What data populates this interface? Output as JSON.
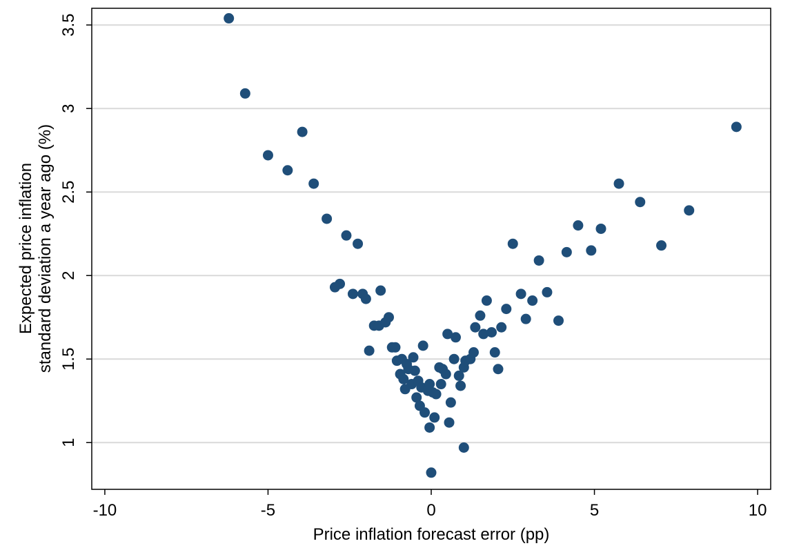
{
  "chart_data": {
    "type": "scatter",
    "title": "",
    "xlabel": "Price inflation forecast error (pp)",
    "ylabel_lines": [
      "Expected price inflation",
      "standard deviation a year ago (%)"
    ],
    "xlim": [
      -10.4,
      10.4
    ],
    "ylim": [
      0.72,
      3.6
    ],
    "x_ticks": [
      -10,
      -5,
      0,
      5,
      10
    ],
    "x_tick_labels": [
      "-10",
      "-5",
      "0",
      "5",
      "10"
    ],
    "y_ticks": [
      1,
      1.5,
      2,
      2.5,
      3,
      3.5
    ],
    "y_tick_labels": [
      "1",
      "1.5",
      "2",
      "2.5",
      "3",
      "3.5"
    ],
    "grid": "horizontal",
    "marker_color": "#1f4e79",
    "points": [
      {
        "x": -6.2,
        "y": 3.54
      },
      {
        "x": -5.7,
        "y": 3.09
      },
      {
        "x": -3.95,
        "y": 2.86
      },
      {
        "x": -5.0,
        "y": 2.72
      },
      {
        "x": -4.4,
        "y": 2.63
      },
      {
        "x": -3.6,
        "y": 2.55
      },
      {
        "x": -3.2,
        "y": 2.34
      },
      {
        "x": -2.6,
        "y": 2.24
      },
      {
        "x": -2.25,
        "y": 2.19
      },
      {
        "x": -2.8,
        "y": 1.95
      },
      {
        "x": -2.95,
        "y": 1.93
      },
      {
        "x": -2.4,
        "y": 1.89
      },
      {
        "x": -2.1,
        "y": 1.89
      },
      {
        "x": -2.0,
        "y": 1.86
      },
      {
        "x": -1.55,
        "y": 1.91
      },
      {
        "x": -1.75,
        "y": 1.7
      },
      {
        "x": -1.6,
        "y": 1.7
      },
      {
        "x": -1.4,
        "y": 1.72
      },
      {
        "x": -1.3,
        "y": 1.75
      },
      {
        "x": -1.9,
        "y": 1.55
      },
      {
        "x": -1.2,
        "y": 1.57
      },
      {
        "x": -1.1,
        "y": 1.57
      },
      {
        "x": -1.05,
        "y": 1.49
      },
      {
        "x": -0.9,
        "y": 1.5
      },
      {
        "x": -0.75,
        "y": 1.47
      },
      {
        "x": -0.55,
        "y": 1.51
      },
      {
        "x": -0.25,
        "y": 1.58
      },
      {
        "x": -0.7,
        "y": 1.44
      },
      {
        "x": -0.5,
        "y": 1.43
      },
      {
        "x": -0.95,
        "y": 1.41
      },
      {
        "x": -0.85,
        "y": 1.38
      },
      {
        "x": -0.6,
        "y": 1.35
      },
      {
        "x": -0.4,
        "y": 1.37
      },
      {
        "x": -0.3,
        "y": 1.33
      },
      {
        "x": -0.8,
        "y": 1.32
      },
      {
        "x": -0.1,
        "y": 1.31
      },
      {
        "x": -0.05,
        "y": 1.35
      },
      {
        "x": 0.05,
        "y": 1.3
      },
      {
        "x": 0.15,
        "y": 1.29
      },
      {
        "x": 0.25,
        "y": 1.45
      },
      {
        "x": 0.35,
        "y": 1.44
      },
      {
        "x": 0.45,
        "y": 1.41
      },
      {
        "x": 0.3,
        "y": 1.35
      },
      {
        "x": -0.45,
        "y": 1.27
      },
      {
        "x": -0.35,
        "y": 1.22
      },
      {
        "x": -0.2,
        "y": 1.18
      },
      {
        "x": 0.1,
        "y": 1.15
      },
      {
        "x": -0.05,
        "y": 1.09
      },
      {
        "x": 0.55,
        "y": 1.12
      },
      {
        "x": 0.6,
        "y": 1.24
      },
      {
        "x": 0.5,
        "y": 1.65
      },
      {
        "x": 0.75,
        "y": 1.63
      },
      {
        "x": 0.7,
        "y": 1.5
      },
      {
        "x": 0.85,
        "y": 1.4
      },
      {
        "x": 0.9,
        "y": 1.34
      },
      {
        "x": 1.0,
        "y": 1.45
      },
      {
        "x": 1.05,
        "y": 1.49
      },
      {
        "x": 1.2,
        "y": 1.5
      },
      {
        "x": 1.3,
        "y": 1.54
      },
      {
        "x": 1.0,
        "y": 0.97
      },
      {
        "x": 0.0,
        "y": 0.82
      },
      {
        "x": 1.35,
        "y": 1.69
      },
      {
        "x": 1.5,
        "y": 1.76
      },
      {
        "x": 1.6,
        "y": 1.65
      },
      {
        "x": 1.7,
        "y": 1.85
      },
      {
        "x": 1.85,
        "y": 1.66
      },
      {
        "x": 1.95,
        "y": 1.54
      },
      {
        "x": 2.05,
        "y": 1.44
      },
      {
        "x": 2.15,
        "y": 1.69
      },
      {
        "x": 2.3,
        "y": 1.8
      },
      {
        "x": 2.5,
        "y": 2.19
      },
      {
        "x": 2.75,
        "y": 1.89
      },
      {
        "x": 2.9,
        "y": 1.74
      },
      {
        "x": 3.1,
        "y": 1.85
      },
      {
        "x": 3.3,
        "y": 2.09
      },
      {
        "x": 3.55,
        "y": 1.9
      },
      {
        "x": 3.9,
        "y": 1.73
      },
      {
        "x": 4.15,
        "y": 2.14
      },
      {
        "x": 4.5,
        "y": 2.3
      },
      {
        "x": 4.9,
        "y": 2.15
      },
      {
        "x": 5.2,
        "y": 2.28
      },
      {
        "x": 5.75,
        "y": 2.55
      },
      {
        "x": 6.4,
        "y": 2.44
      },
      {
        "x": 7.05,
        "y": 2.18
      },
      {
        "x": 7.9,
        "y": 2.39
      },
      {
        "x": 9.35,
        "y": 2.89
      }
    ]
  }
}
